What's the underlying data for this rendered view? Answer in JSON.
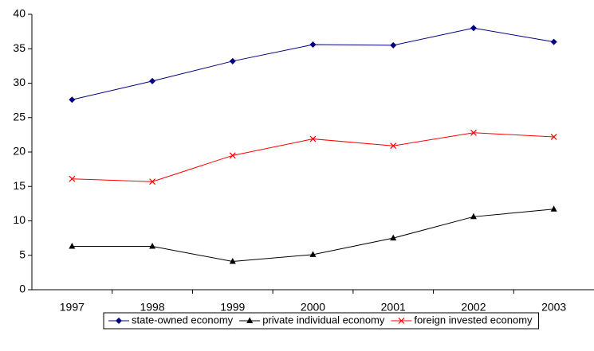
{
  "chart_data": {
    "type": "line",
    "categories": [
      "1997",
      "1998",
      "1999",
      "2000",
      "2001",
      "2002",
      "2003"
    ],
    "series": [
      {
        "name": "state-owned economy",
        "color": "#000080",
        "marker": "diamond",
        "values": [
          27.6,
          30.3,
          33.2,
          35.6,
          35.5,
          38.0,
          36.0
        ]
      },
      {
        "name": "private individual economy",
        "color": "#000000",
        "marker": "triangle",
        "values": [
          6.3,
          6.3,
          4.1,
          5.1,
          7.5,
          10.6,
          11.7
        ]
      },
      {
        "name": "foreign invested economy",
        "color": "#ff0000",
        "marker": "x",
        "values": [
          16.1,
          15.7,
          19.5,
          21.9,
          20.9,
          22.8,
          22.2
        ]
      }
    ],
    "ylim": [
      0,
      40
    ],
    "yticks": [
      0,
      5,
      10,
      15,
      20,
      25,
      30,
      35,
      40
    ],
    "grid": false
  }
}
